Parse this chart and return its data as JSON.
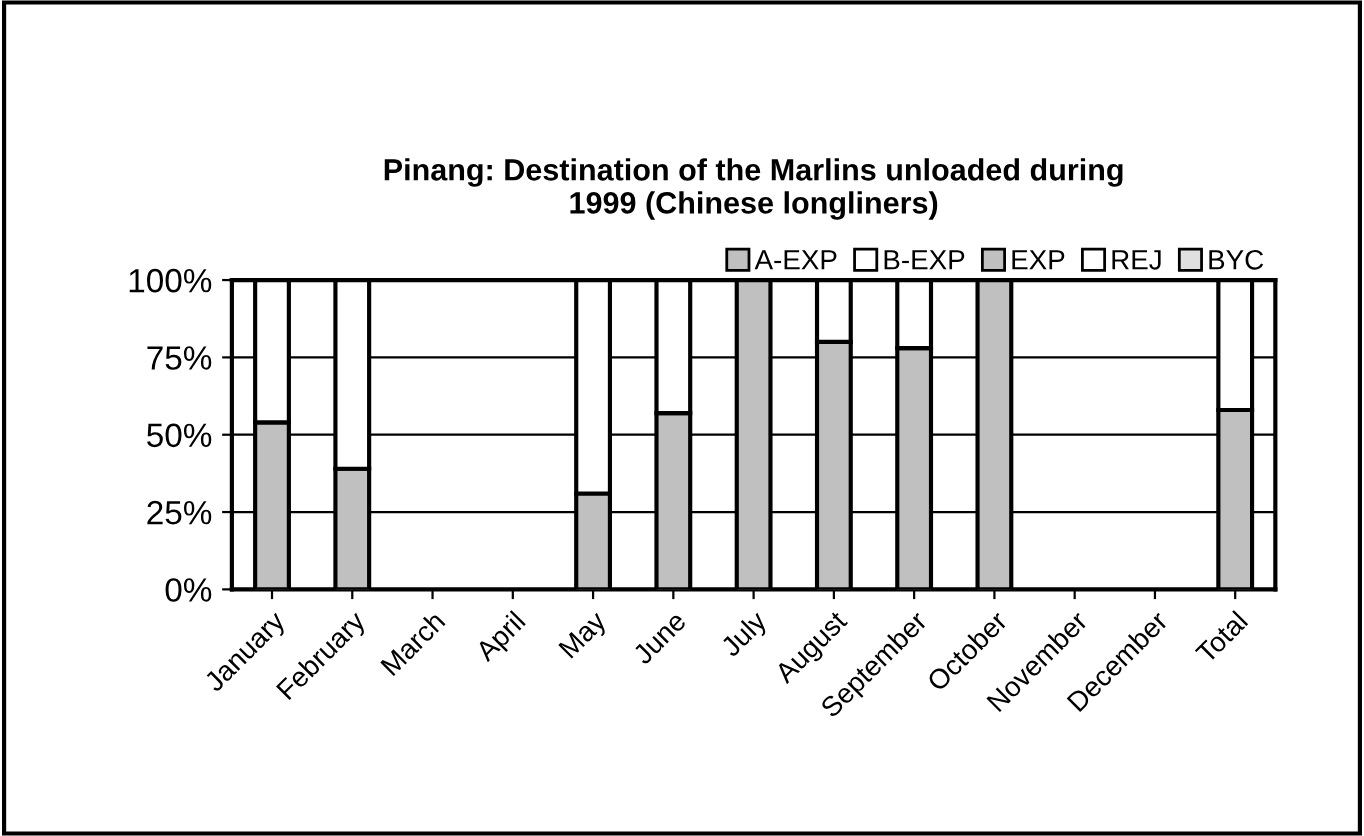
{
  "chart_data": {
    "type": "bar",
    "title": "Pinang: Destination of the Marlins unloaded during\n1999 (Chinese longliners)",
    "stacked": true,
    "categories": [
      "January",
      "February",
      "March",
      "April",
      "May",
      "June",
      "July",
      "August",
      "September",
      "October",
      "November",
      "December",
      "Total"
    ],
    "series": [
      {
        "name": "A-EXP",
        "color": "#c0c0c0",
        "values": [
          0,
          0,
          null,
          null,
          0,
          0,
          0,
          0,
          0,
          0,
          null,
          null,
          0
        ]
      },
      {
        "name": "B-EXP",
        "color": "#ffffff",
        "values": [
          0,
          0,
          null,
          null,
          0,
          0,
          0,
          0,
          0,
          0,
          null,
          null,
          0
        ]
      },
      {
        "name": "EXP",
        "color": "#c0c0c0",
        "values": [
          54,
          39,
          null,
          null,
          31,
          57,
          100,
          80,
          78,
          100,
          null,
          null,
          58
        ]
      },
      {
        "name": "REJ",
        "color": "#ffffff",
        "values": [
          46,
          61,
          null,
          null,
          69,
          43,
          0,
          20,
          22,
          0,
          null,
          null,
          42
        ]
      },
      {
        "name": "BYC",
        "color": "#e0e0e0",
        "values": [
          0,
          0,
          null,
          null,
          0,
          0,
          0,
          0,
          0,
          0,
          null,
          null,
          0
        ]
      }
    ],
    "ylim": [
      0,
      100
    ],
    "yticks": [
      {
        "value": 0,
        "label": "0%"
      },
      {
        "value": 25,
        "label": "25%"
      },
      {
        "value": 50,
        "label": "50%"
      },
      {
        "value": 75,
        "label": "75%"
      },
      {
        "value": 100,
        "label": "100%"
      }
    ],
    "grid": "y",
    "legend": "top right"
  }
}
